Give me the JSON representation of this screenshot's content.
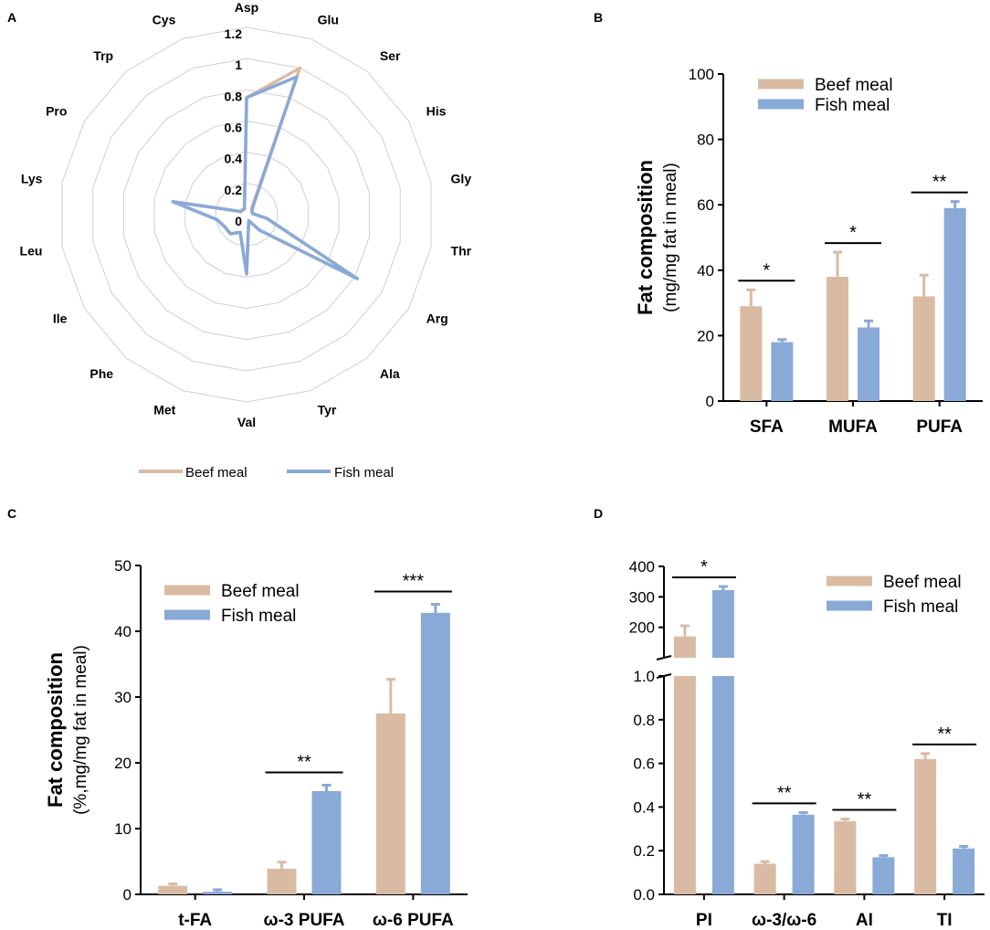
{
  "colors": {
    "beef": "#d9bba4",
    "fish": "#89a9d6",
    "grid": "#cfcfcf",
    "axis": "#000000",
    "text": "#000000"
  },
  "chart_data": [
    {
      "panel": "A",
      "type": "radar",
      "categories": [
        "Asp",
        "Glu",
        "Ser",
        "His",
        "Gly",
        "Thr",
        "Arg",
        "Ala",
        "Tyr",
        "Val",
        "Met",
        "Phe",
        "Ile",
        "Leu",
        "Lys",
        "Pro",
        "Trp",
        "Cys"
      ],
      "radial_ticks": [
        "0",
        "0.2",
        "0.4",
        "0.6",
        "0.8",
        "1",
        "1.2"
      ],
      "rmax": 1.2,
      "series": [
        {
          "name": "Beef meal",
          "values": [
            0.75,
            1.0,
            0.05,
            0.04,
            0.04,
            0.13,
            0.82,
            0.13,
            0.04,
            0.38,
            0.12,
            0.16,
            0.16,
            0.19,
            0.48,
            0.04,
            0.04,
            0.04
          ]
        },
        {
          "name": "Fish meal",
          "values": [
            0.75,
            0.94,
            0.06,
            0.04,
            0.04,
            0.13,
            0.82,
            0.13,
            0.04,
            0.38,
            0.12,
            0.16,
            0.16,
            0.19,
            0.48,
            0.04,
            0.04,
            0.04
          ]
        }
      ],
      "legend": [
        "Beef meal",
        "Fish meal"
      ]
    },
    {
      "panel": "B",
      "type": "bar",
      "ylabel": "Fat composition",
      "ylabel_sub": "(mg/mg fat in meal)",
      "ylim": [
        0,
        100
      ],
      "yticks": [
        "0",
        "20",
        "40",
        "60",
        "80",
        "100"
      ],
      "categories": [
        "SFA",
        "MUFA",
        "PUFA"
      ],
      "series": [
        {
          "name": "Beef meal",
          "values": [
            29,
            38,
            32
          ],
          "errors": [
            5,
            7.5,
            6.5
          ]
        },
        {
          "name": "Fish meal",
          "values": [
            18,
            22.5,
            59
          ],
          "errors": [
            0.8,
            2,
            2
          ]
        }
      ],
      "significance": [
        "*",
        "*",
        "**"
      ],
      "legend_position": "top-left"
    },
    {
      "panel": "C",
      "type": "bar",
      "ylabel": "Fat composition",
      "ylabel_sub": "(%,mg/mg fat in meal)",
      "ylim": [
        0,
        50
      ],
      "yticks": [
        "0",
        "10",
        "20",
        "30",
        "40",
        "50"
      ],
      "categories": [
        "t-FA",
        "ω-3 PUFA",
        "ω-6 PUFA"
      ],
      "series": [
        {
          "name": "Beef meal",
          "values": [
            1.3,
            3.9,
            27.5
          ],
          "errors": [
            0.3,
            1.0,
            5.2
          ]
        },
        {
          "name": "Fish meal",
          "values": [
            0.4,
            15.7,
            42.8
          ],
          "errors": [
            0.3,
            0.9,
            1.3
          ]
        }
      ],
      "significance": [
        "",
        "**",
        "***"
      ],
      "legend_position": "top-left"
    },
    {
      "panel": "D",
      "type": "bar",
      "ylabel": "",
      "broken_axis": true,
      "lower_ylim": [
        0,
        1.0
      ],
      "lower_yticks": [
        "0.0",
        "0.2",
        "0.4",
        "0.6",
        "0.8",
        "1.0"
      ],
      "upper_ylim": [
        100,
        400
      ],
      "upper_yticks": [
        "200",
        "300",
        "400"
      ],
      "categories": [
        "PI",
        "ω-3/ω-6",
        "AI",
        "TI"
      ],
      "series": [
        {
          "name": "Beef meal",
          "values": [
            170,
            0.14,
            0.335,
            0.62
          ],
          "errors": [
            35,
            0.01,
            0.01,
            0.025
          ]
        },
        {
          "name": "Fish meal",
          "values": [
            322,
            0.365,
            0.17,
            0.21
          ],
          "errors": [
            12,
            0.01,
            0.008,
            0.01
          ]
        }
      ],
      "significance": [
        "*",
        "**",
        "**",
        "**"
      ],
      "legend_position": "top-right"
    }
  ],
  "panel_labels": [
    "A",
    "B",
    "C",
    "D"
  ]
}
